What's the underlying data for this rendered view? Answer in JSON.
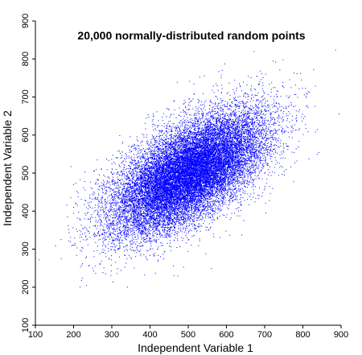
{
  "chart_data": {
    "type": "scatter",
    "title": "20,000 normally-distributed random points",
    "xlabel": "Independent Variable 1",
    "ylabel": "Independent Variable 2",
    "xlim": [
      100,
      900
    ],
    "ylim": [
      100,
      900
    ],
    "xticks": [
      100,
      200,
      300,
      400,
      500,
      600,
      700,
      800,
      900
    ],
    "yticks": [
      100,
      200,
      300,
      400,
      500,
      600,
      700,
      800,
      900
    ],
    "xtick_labels": [
      "100",
      "200",
      "300",
      "400",
      "500",
      "600",
      "700",
      "800",
      "900"
    ],
    "ytick_labels": [
      "100",
      "200",
      "300",
      "400",
      "500",
      "600",
      "700",
      "800",
      "900"
    ],
    "grid": false,
    "point_color": "#0000ff",
    "series": [
      {
        "n_points": 20000,
        "distribution": {
          "mean_x": 500,
          "mean_y": 500,
          "std_x": 100,
          "std_y": 80,
          "correlation": 0.62
        }
      }
    ]
  }
}
